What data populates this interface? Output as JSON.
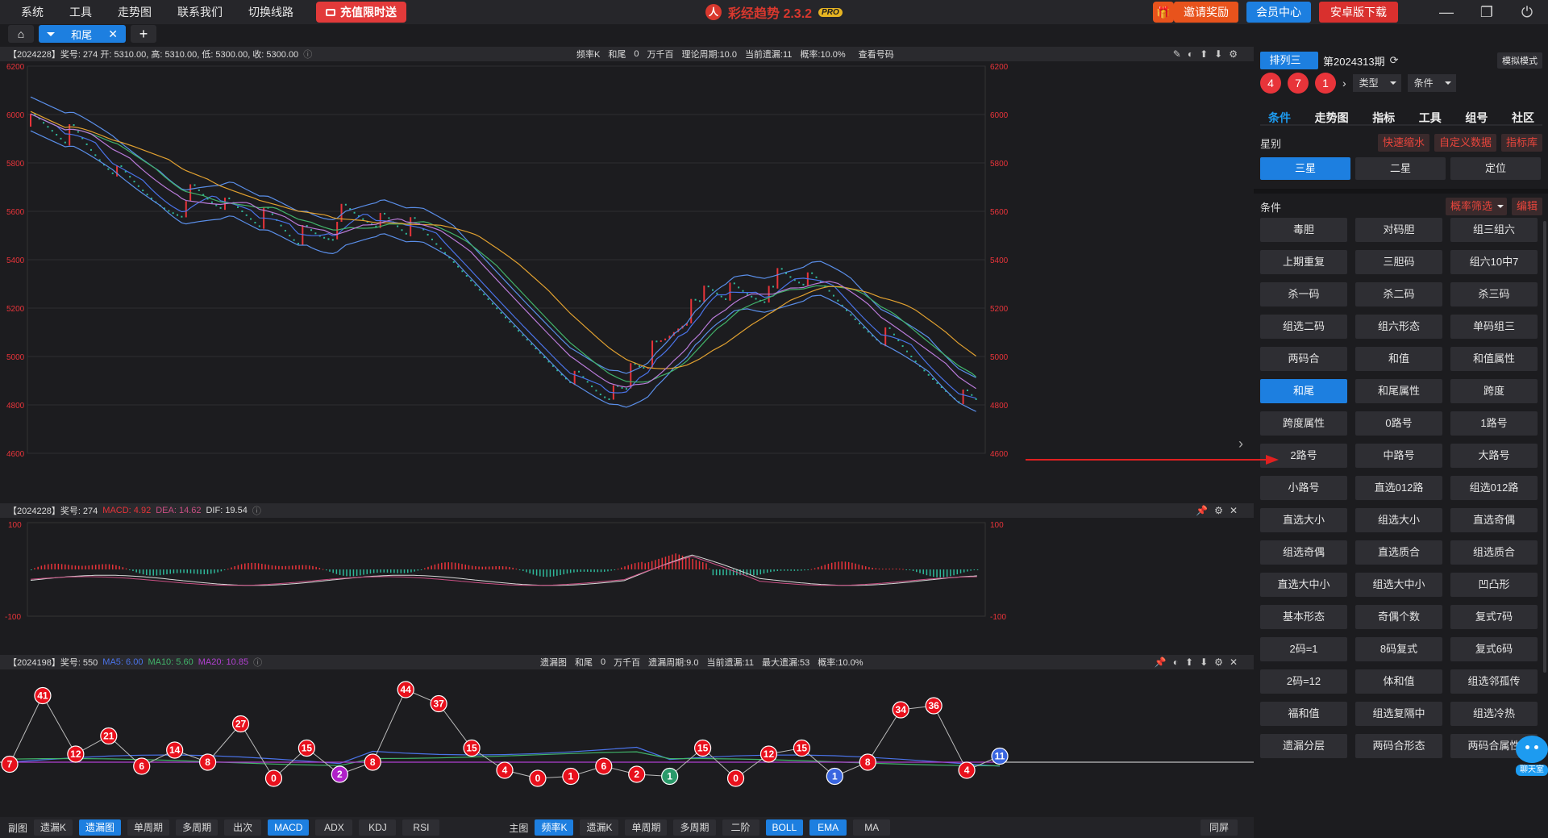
{
  "menu": [
    "系统",
    "工具",
    "走势图",
    "联系我们",
    "切换线路"
  ],
  "promo_label": "充值限时送",
  "app": {
    "name": "彩经趋势 2.3.2",
    "badge": "PRO"
  },
  "top_actions": {
    "invite": "邀请奖励",
    "member": "会员中心",
    "android": "安卓版下载"
  },
  "window": {
    "min": "—",
    "restore": "❐",
    "close": "⏻"
  },
  "tabs": {
    "active": "和尾",
    "add": "+"
  },
  "panel1": {
    "info": "【2024228】奖号: 274  开: 5310.00, 高: 5310.00, 低: 5300.00, 收: 5300.00",
    "mid": [
      "频率K",
      "和尾",
      "0",
      "万千百",
      "理论周期:10.0",
      "当前遗漏:11",
      "概率:10.0%",
      "查看号码"
    ],
    "y_ticks": [
      "6200",
      "6000",
      "5800",
      "5600",
      "5400",
      "5200",
      "5000",
      "4800",
      "4600"
    ]
  },
  "panel2": {
    "info_prefix": "【2024228】奖号: 274",
    "macd": "MACD: 4.92",
    "dea": "DEA: 14.62",
    "dif": "DIF: 19.54",
    "y_ticks": [
      "100",
      "-100"
    ]
  },
  "panel3": {
    "info_prefix": "【2024198】奖号: 550",
    "ma5": "MA5: 6.00",
    "ma10": "MA10: 5.60",
    "ma20": "MA20: 10.85",
    "mid": [
      "遗漏图",
      "和尾",
      "0",
      "万千百",
      "遗漏周期:9.0",
      "当前遗漏:11",
      "最大遗漏:53",
      "概率:10.0%"
    ],
    "balls": [
      "7",
      "41",
      "12",
      "21",
      "6",
      "14",
      "8",
      "27",
      "0",
      "15",
      "2",
      "8",
      "44",
      "37",
      "15",
      "4",
      "0",
      "1",
      "6",
      "2",
      "1",
      "15",
      "0",
      "12",
      "15",
      "1",
      "8",
      "34",
      "36",
      "4",
      "11"
    ]
  },
  "chart_data": [
    {
      "type": "candlestick",
      "y_ticks": [
        6200,
        6000,
        5800,
        5600,
        5400,
        5200,
        5000,
        4800,
        4600
      ],
      "ylim": [
        4600,
        6200
      ],
      "overlays": [
        "BOLL",
        "EMA"
      ]
    },
    {
      "type": "bar",
      "name": "MACD",
      "ylim": [
        -100,
        100
      ],
      "series": [
        {
          "name": "MACD",
          "value": 4.92
        },
        {
          "name": "DEA",
          "value": 14.62
        },
        {
          "name": "DIF",
          "value": 19.54
        }
      ]
    },
    {
      "type": "line",
      "name": "遗漏图",
      "values": [
        7,
        41,
        12,
        21,
        6,
        14,
        8,
        27,
        0,
        15,
        2,
        8,
        44,
        37,
        15,
        4,
        0,
        1,
        6,
        2,
        1,
        15,
        0,
        12,
        15,
        1,
        8,
        34,
        36,
        4,
        11
      ],
      "series": [
        {
          "name": "MA5",
          "value": 6.0
        },
        {
          "name": "MA10",
          "value": 5.6
        },
        {
          "name": "MA20",
          "value": 10.85
        }
      ]
    }
  ],
  "bottom": {
    "sub_label": "副图",
    "sub_buttons": [
      "遗漏K",
      "遗漏图",
      "单周期",
      "多周期",
      "出次",
      "MACD",
      "ADX",
      "KDJ",
      "RSI"
    ],
    "main_label": "主图",
    "main_buttons": [
      "频率K",
      "遗漏K",
      "单周期",
      "多周期",
      "二阶",
      "BOLL",
      "EMA",
      "MA"
    ],
    "sync": "同屏"
  },
  "right": {
    "lottery": "排列三",
    "period": "第2024313期",
    "sim": "模拟模式",
    "balls": [
      "4",
      "7",
      "1"
    ],
    "type_drop": "类型",
    "cond_drop": "条件",
    "nav": [
      "条件",
      "走势图",
      "指标",
      "工具",
      "组号",
      "社区"
    ],
    "star_label": "星别",
    "star_links": [
      "快速缩水",
      "自定义数据",
      "指标库"
    ],
    "stars": [
      "三星",
      "二星",
      "定位"
    ],
    "cond_label": "条件",
    "filter": "概率筛选",
    "edit": "编辑",
    "conditions": [
      "毒胆",
      "对码胆",
      "组三组六",
      "上期重复",
      "三胆码",
      "组六10中7",
      "杀一码",
      "杀二码",
      "杀三码",
      "组选二码",
      "组六形态",
      "单码组三",
      "两码合",
      "和值",
      "和值属性",
      "和尾",
      "和尾属性",
      "跨度",
      "跨度属性",
      "0路号",
      "1路号",
      "2路号",
      "中路号",
      "大路号",
      "小路号",
      "直选012路",
      "组选012路",
      "直选大小",
      "组选大小",
      "直选奇偶",
      "组选奇偶",
      "直选质合",
      "组选质合",
      "直选大中小",
      "组选大中小",
      "凹凸形",
      "基本形态",
      "奇偶个数",
      "复式7码",
      "2码=1",
      "8码复式",
      "复式6码",
      "2码=12",
      "体和值",
      "组选邻孤传",
      "福和值",
      "组选复隔中",
      "组选冷热",
      "遗漏分层",
      "两码合形态",
      "两码合属性"
    ],
    "chat": "聊天室"
  },
  "colors": {
    "accent": "#1d7fe0",
    "red": "#e8343a",
    "up": "#e8343a",
    "down": "#2fb89a"
  }
}
